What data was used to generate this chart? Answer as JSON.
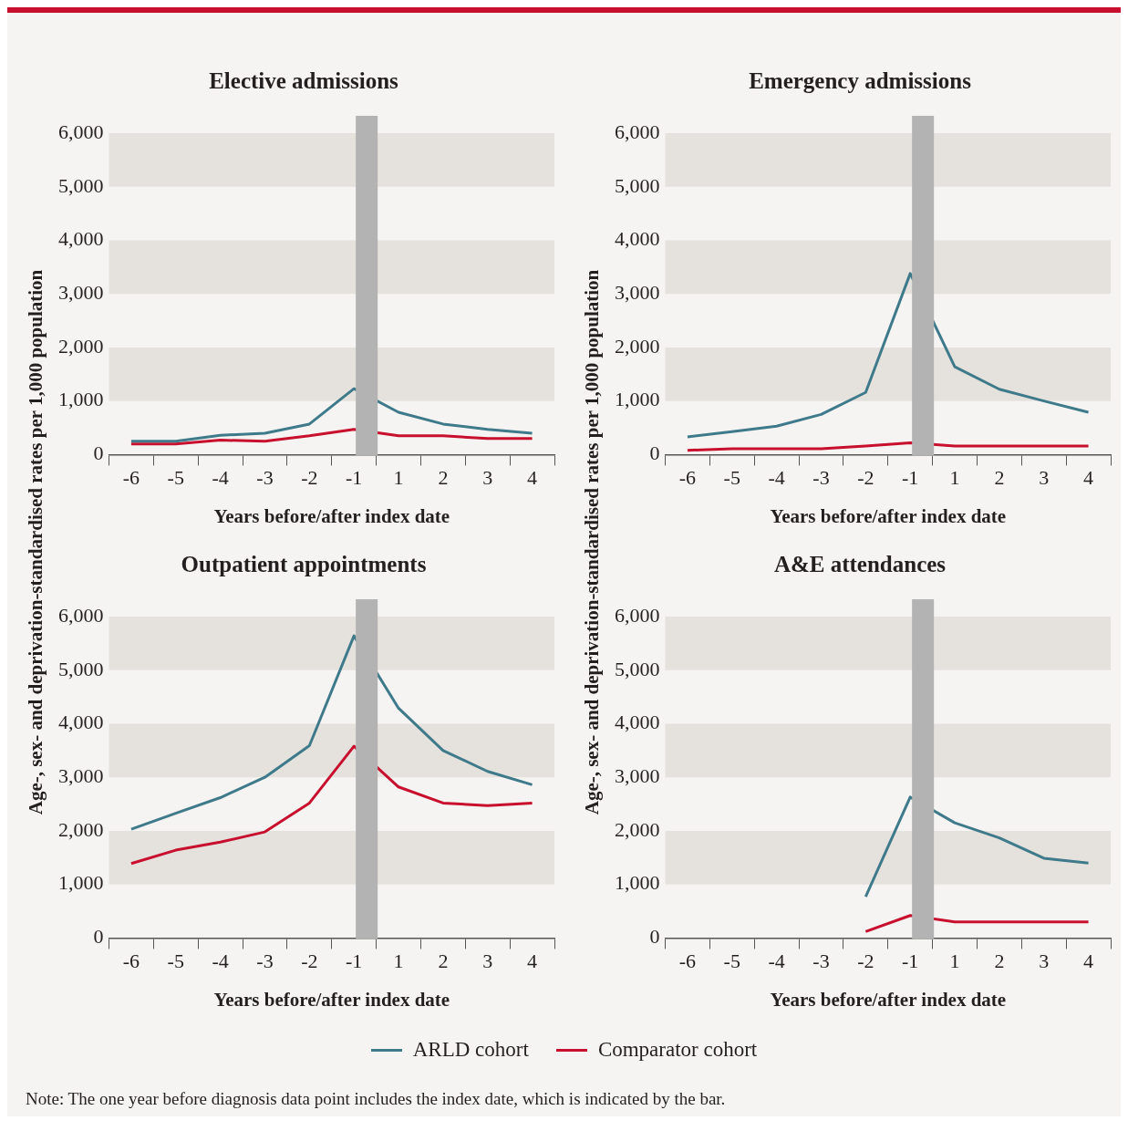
{
  "chart_data": [
    {
      "type": "line",
      "title": "Elective admissions",
      "xlabel": "Years before/after index date",
      "ylabel": "Age-, sex- and deprivation-standardised rates per 1,000 population",
      "categories": [
        "-6",
        "-5",
        "-4",
        "-3",
        "-2",
        "-1",
        "1",
        "2",
        "3",
        "4"
      ],
      "ylim": [
        0,
        6000
      ],
      "yticks": [
        {
          "value": 0,
          "label": "0"
        },
        {
          "value": 1000,
          "label": "1,000"
        },
        {
          "value": 2000,
          "label": "2,000"
        },
        {
          "value": 3000,
          "label": "3,000"
        },
        {
          "value": 4000,
          "label": "4,000"
        },
        {
          "value": 5000,
          "label": "5,000"
        },
        {
          "value": 6000,
          "label": "6,000"
        }
      ],
      "grid": false,
      "marker": "none",
      "line_style": "solid",
      "bands": [
        {
          "axis": "y",
          "from": 1000,
          "to": 2000,
          "color": "#e5e2de"
        },
        {
          "axis": "y",
          "from": 3000,
          "to": 4000,
          "color": "#e5e2de"
        },
        {
          "axis": "y",
          "from": 5000,
          "to": 6000,
          "color": "#e5e2de"
        },
        {
          "axis": "x",
          "from": "-1",
          "to": "1",
          "color": "#b3b3b3"
        }
      ],
      "legend": "bottom",
      "series": [
        {
          "name": "ARLD cohort",
          "color": "#3f7a8a",
          "values": [
            250,
            250,
            360,
            400,
            570,
            1230,
            790,
            570,
            470,
            400
          ]
        },
        {
          "name": "Comparator cohort",
          "color": "#c8102e",
          "values": [
            200,
            200,
            270,
            250,
            350,
            470,
            350,
            350,
            300,
            300
          ]
        }
      ]
    },
    {
      "type": "line",
      "title": "Emergency admissions",
      "xlabel": "Years before/after index date",
      "ylabel": "Age-, sex- and deprivation-standardised rates per 1,000 population",
      "categories": [
        "-6",
        "-5",
        "-4",
        "-3",
        "-2",
        "-1",
        "1",
        "2",
        "3",
        "4"
      ],
      "ylim": [
        0,
        6000
      ],
      "yticks": [
        {
          "value": 0,
          "label": "0"
        },
        {
          "value": 1000,
          "label": "1,000"
        },
        {
          "value": 2000,
          "label": "2,000"
        },
        {
          "value": 3000,
          "label": "3,000"
        },
        {
          "value": 4000,
          "label": "4,000"
        },
        {
          "value": 5000,
          "label": "5,000"
        },
        {
          "value": 6000,
          "label": "6,000"
        }
      ],
      "grid": false,
      "marker": "none",
      "line_style": "solid",
      "bands": [
        {
          "axis": "y",
          "from": 1000,
          "to": 2000,
          "color": "#e5e2de"
        },
        {
          "axis": "y",
          "from": 3000,
          "to": 4000,
          "color": "#e5e2de"
        },
        {
          "axis": "y",
          "from": 5000,
          "to": 6000,
          "color": "#e5e2de"
        },
        {
          "axis": "x",
          "from": "-1",
          "to": "1",
          "color": "#b3b3b3"
        }
      ],
      "series": [
        {
          "color": "#3f7a8a",
          "values": [
            330,
            430,
            530,
            750,
            1160,
            3380,
            1640,
            1220,
            1000,
            790
          ]
        },
        {
          "color": "#c8102e",
          "values": [
            80,
            110,
            110,
            110,
            160,
            220,
            160,
            160,
            160,
            160
          ]
        }
      ]
    },
    {
      "type": "line",
      "title": "Outpatient appointments",
      "xlabel": "Years before/after index date",
      "categories": [
        "-6",
        "-5",
        "-4",
        "-3",
        "-2",
        "-1",
        "1",
        "2",
        "3",
        "4"
      ],
      "ylim": [
        0,
        6000
      ],
      "yticks": [
        {
          "value": 0,
          "label": "0"
        },
        {
          "value": 1000,
          "label": "1,000"
        },
        {
          "value": 2000,
          "label": "2,000"
        },
        {
          "value": 3000,
          "label": "3,000"
        },
        {
          "value": 4000,
          "label": "4,000"
        },
        {
          "value": 5000,
          "label": "5,000"
        },
        {
          "value": 6000,
          "label": "6,000"
        }
      ],
      "grid": false,
      "marker": "none",
      "line_style": "solid",
      "bands": [
        {
          "axis": "y",
          "from": 1000,
          "to": 2000,
          "color": "#e5e2de"
        },
        {
          "axis": "y",
          "from": 3000,
          "to": 4000,
          "color": "#e5e2de"
        },
        {
          "axis": "y",
          "from": 5000,
          "to": 6000,
          "color": "#e5e2de"
        },
        {
          "axis": "x",
          "from": "-1",
          "to": "1",
          "color": "#b3b3b3"
        }
      ],
      "series": [
        {
          "color": "#3f7a8a",
          "values": [
            2030,
            2330,
            2620,
            3000,
            3590,
            5640,
            4290,
            3500,
            3110,
            2860
          ]
        },
        {
          "color": "#c8102e",
          "values": [
            1390,
            1640,
            1790,
            1980,
            2520,
            3580,
            2820,
            2520,
            2470,
            2520
          ]
        }
      ]
    },
    {
      "type": "line",
      "title": "A&E attendances",
      "xlabel": "Years before/after index date",
      "categories": [
        "-6",
        "-5",
        "-4",
        "-3",
        "-2",
        "-1",
        "1",
        "2",
        "3",
        "4"
      ],
      "ylim": [
        0,
        6000
      ],
      "yticks": [
        {
          "value": 0,
          "label": "0"
        },
        {
          "value": 1000,
          "label": "1,000"
        },
        {
          "value": 2000,
          "label": "2,000"
        },
        {
          "value": 3000,
          "label": "3,000"
        },
        {
          "value": 4000,
          "label": "4,000"
        },
        {
          "value": 5000,
          "label": "5,000"
        },
        {
          "value": 6000,
          "label": "6,000"
        }
      ],
      "grid": false,
      "marker": "none",
      "line_style": "solid",
      "bands": [
        {
          "axis": "y",
          "from": 1000,
          "to": 2000,
          "color": "#e5e2de"
        },
        {
          "axis": "y",
          "from": 3000,
          "to": 4000,
          "color": "#e5e2de"
        },
        {
          "axis": "y",
          "from": 5000,
          "to": 6000,
          "color": "#e5e2de"
        },
        {
          "axis": "x",
          "from": "-1",
          "to": "1",
          "color": "#b3b3b3"
        }
      ],
      "annotations": [
        "Note: The one year before diagnosis data point includes the index date, which is indicated by the bar."
      ],
      "series": [
        {
          "color": "#3f7a8a",
          "values": [
            null,
            null,
            null,
            null,
            770,
            2630,
            2150,
            1870,
            1490,
            1400
          ]
        },
        {
          "color": "#c8102e",
          "values": [
            null,
            null,
            null,
            null,
            120,
            420,
            300,
            300,
            300,
            300
          ]
        }
      ]
    }
  ]
}
